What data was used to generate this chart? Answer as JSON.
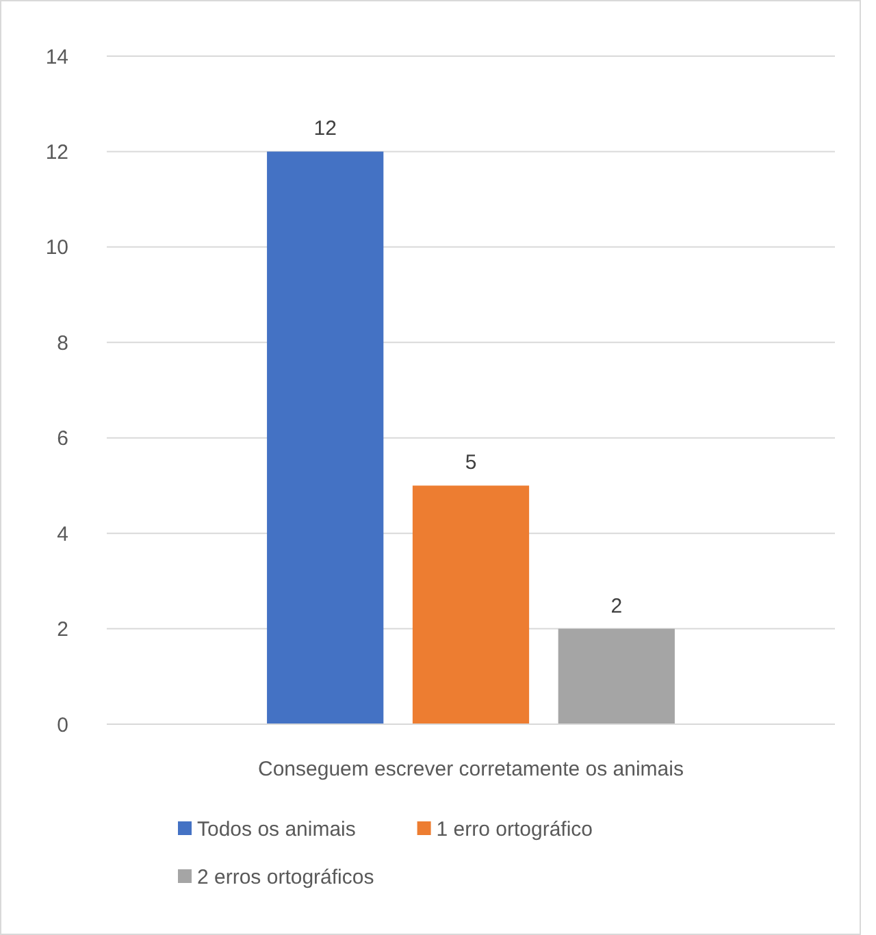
{
  "chart_data": {
    "type": "bar",
    "categories": [
      "Conseguem escrever corretamente os animais"
    ],
    "series": [
      {
        "name": "Todos os animais",
        "color": "#4472c4",
        "values": [
          12
        ]
      },
      {
        "name": "1 erro ortográfico",
        "color": "#ed7d31",
        "values": [
          5
        ]
      },
      {
        "name": "2 erros ortográficos",
        "color": "#a5a5a5",
        "values": [
          2
        ]
      }
    ],
    "ylim": [
      0,
      14
    ],
    "yticks": [
      0,
      2,
      4,
      6,
      8,
      10,
      12,
      14
    ],
    "grid": "y",
    "legend": "bottom",
    "data_labels": true
  }
}
